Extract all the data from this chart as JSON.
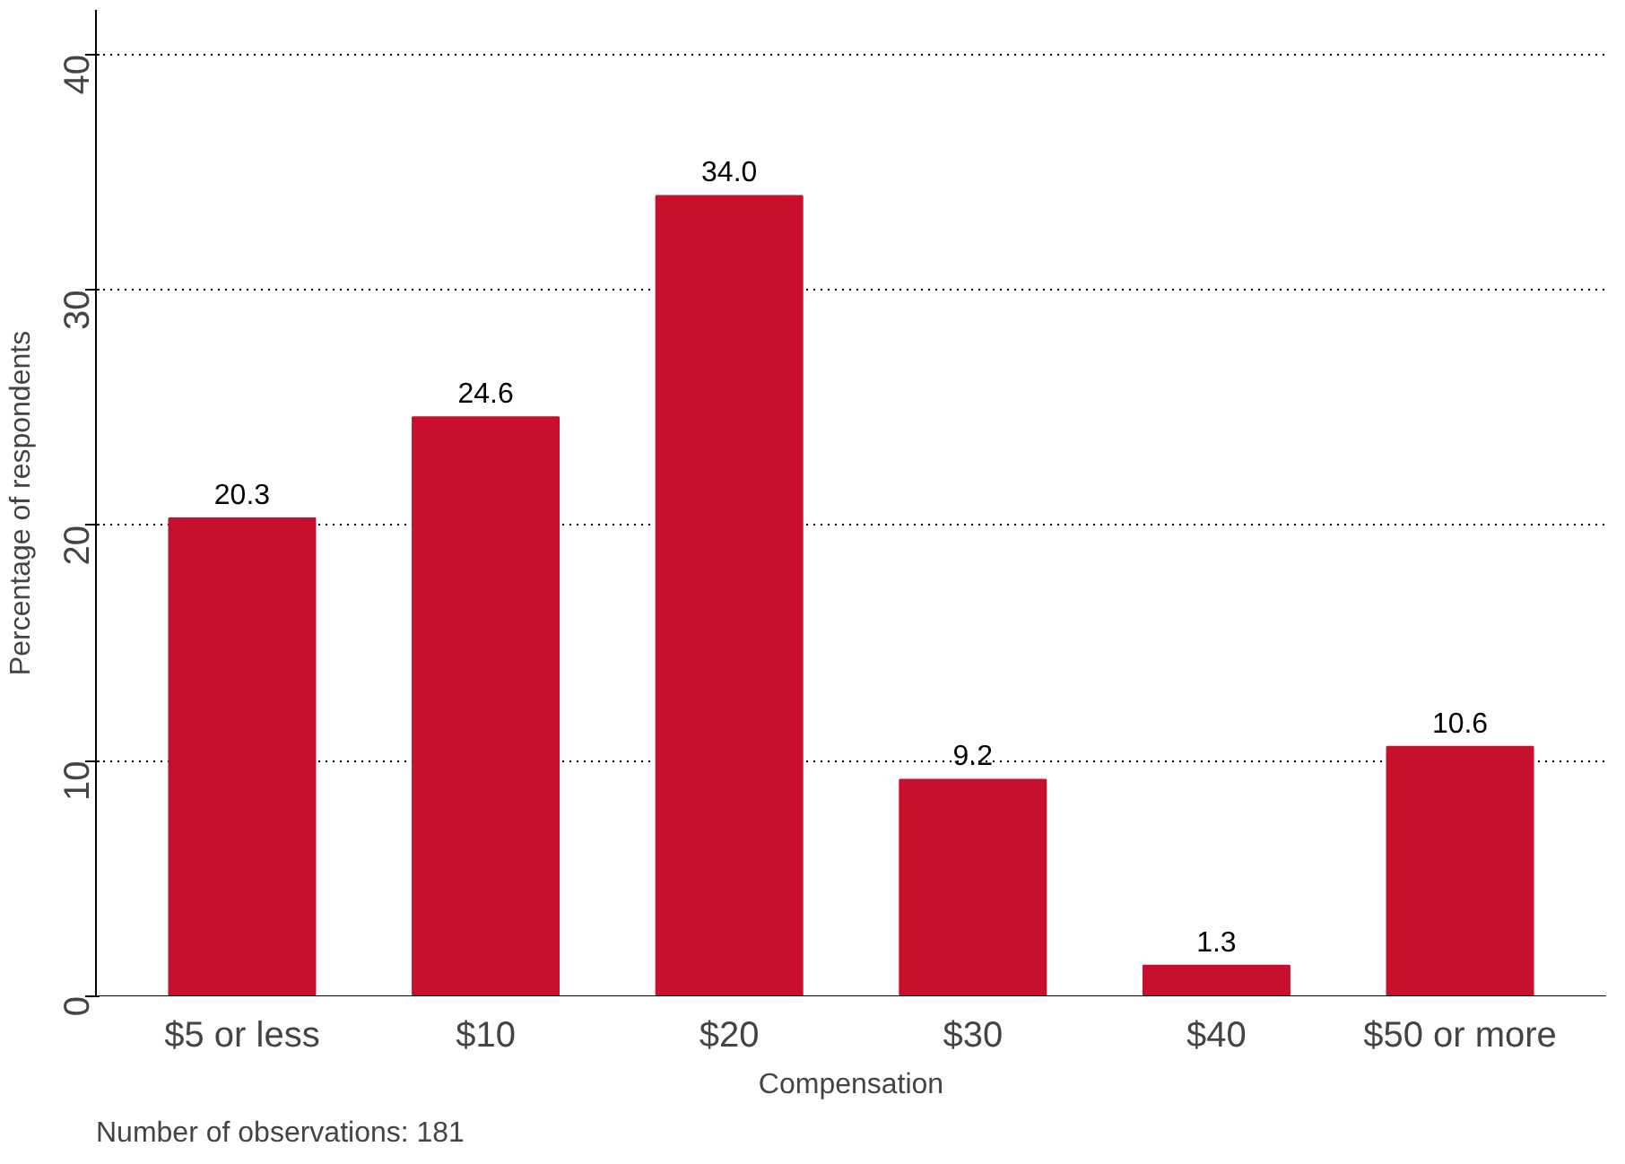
{
  "chart_data": {
    "type": "bar",
    "xlabel": "Compensation",
    "ylabel": "Percentage of respondents",
    "categories": [
      "$5 or less",
      "$10",
      "$20",
      "$30",
      "$40",
      "$50 or more"
    ],
    "values": [
      20.3,
      24.6,
      34.0,
      9.2,
      1.3,
      10.6
    ],
    "color": "#c8102e",
    "ylim": [
      0,
      41.9
    ],
    "yticks": [
      0,
      10,
      20,
      30,
      40
    ],
    "grid": "y",
    "value_labels": [
      "20.3",
      "24.6",
      "34.0",
      "9.2",
      "1.3",
      "10.6"
    ],
    "annotations": [
      "Number of observations: 181"
    ]
  }
}
